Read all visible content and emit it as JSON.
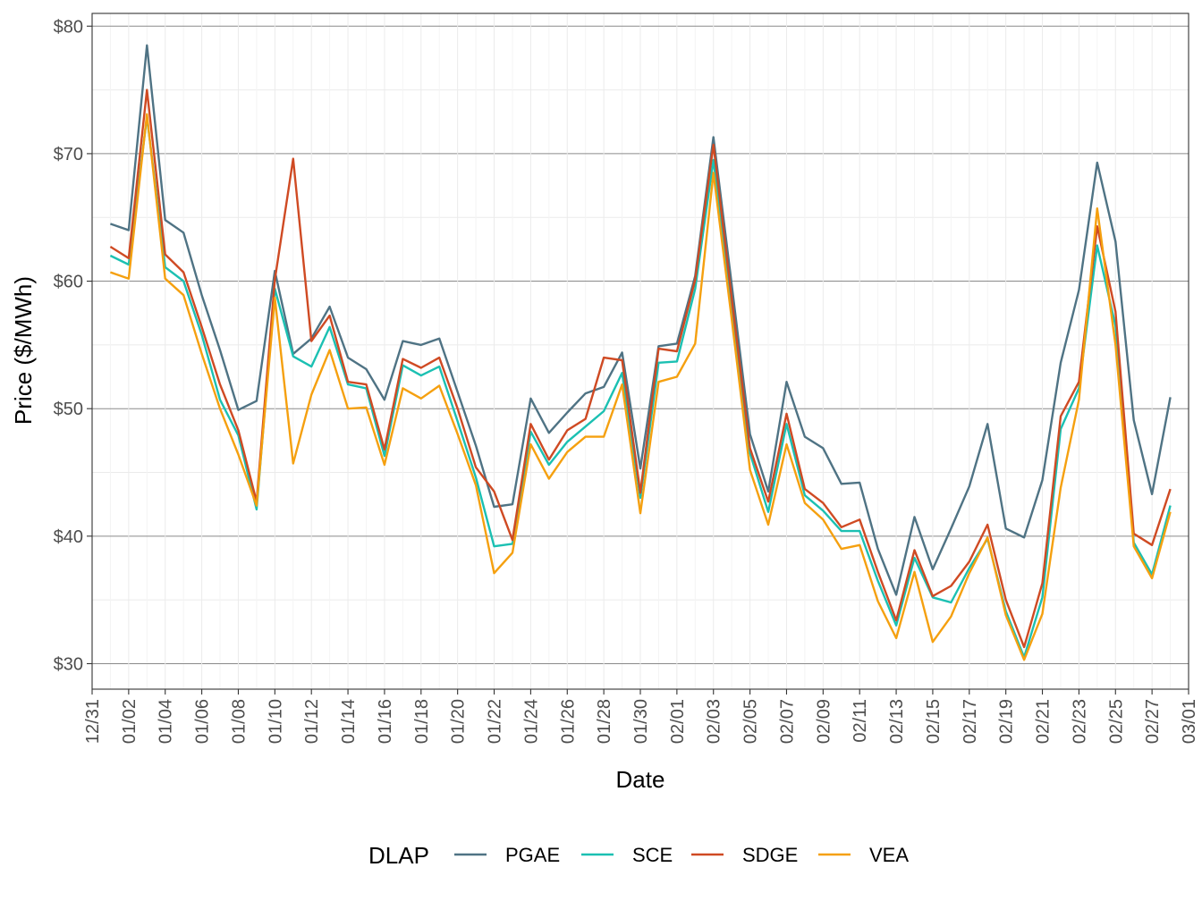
{
  "chart_data": {
    "type": "line",
    "xlabel": "Date",
    "ylabel": "Price ($/MWh)",
    "x_ticks": [
      "12/31",
      "01/02",
      "01/04",
      "01/06",
      "01/08",
      "01/10",
      "01/12",
      "01/14",
      "01/16",
      "01/18",
      "01/20",
      "01/22",
      "01/24",
      "01/26",
      "01/28",
      "01/30",
      "02/01",
      "02/03",
      "02/05",
      "02/07",
      "02/09",
      "02/11",
      "02/13",
      "02/15",
      "02/17",
      "02/19",
      "02/21",
      "02/23",
      "02/25",
      "02/27",
      "03/01"
    ],
    "y_ticks": [
      "$30",
      "$40",
      "$50",
      "$60",
      "$70",
      "$80"
    ],
    "y_tick_values": [
      30,
      40,
      50,
      60,
      70,
      80
    ],
    "ylim": [
      28.0,
      81.0
    ],
    "grid": true,
    "legend": {
      "title": "DLAP",
      "position": "bottom"
    },
    "x": [
      "01/01",
      "01/02",
      "01/03",
      "01/04",
      "01/05",
      "01/06",
      "01/07",
      "01/08",
      "01/09",
      "01/10",
      "01/11",
      "01/12",
      "01/13",
      "01/14",
      "01/15",
      "01/16",
      "01/17",
      "01/18",
      "01/19",
      "01/20",
      "01/21",
      "01/22",
      "01/23",
      "01/24",
      "01/25",
      "01/26",
      "01/27",
      "01/28",
      "01/29",
      "01/30",
      "01/31",
      "02/01",
      "02/02",
      "02/03",
      "02/04",
      "02/05",
      "02/06",
      "02/07",
      "02/08",
      "02/09",
      "02/10",
      "02/11",
      "02/12",
      "02/13",
      "02/14",
      "02/15",
      "02/16",
      "02/17",
      "02/18",
      "02/19",
      "02/20",
      "02/21",
      "02/22",
      "02/23",
      "02/24",
      "02/25",
      "02/26",
      "02/27",
      "02/28"
    ],
    "series": [
      {
        "name": "PGAE",
        "color": "#4F7384",
        "values": [
          64.5,
          64.0,
          78.5,
          64.8,
          63.8,
          58.9,
          54.6,
          49.9,
          50.6,
          60.8,
          54.3,
          55.5,
          58.0,
          54.0,
          53.1,
          50.7,
          55.3,
          55.0,
          55.5,
          51.3,
          47.1,
          42.3,
          42.5,
          50.8,
          48.1,
          49.7,
          51.2,
          51.7,
          54.4,
          45.3,
          54.9,
          55.1,
          60.4,
          71.3,
          59.7,
          48.0,
          43.5,
          52.1,
          47.8,
          46.9,
          44.1,
          44.2,
          39.0,
          35.4,
          41.5,
          37.4,
          40.6,
          43.9,
          48.8,
          40.6,
          39.9,
          44.4,
          53.6,
          59.3,
          69.3,
          63.1,
          49.1,
          43.3,
          50.9
        ]
      },
      {
        "name": "SCE",
        "color": "#1BC0B2",
        "values": [
          62.0,
          61.3,
          72.9,
          61.1,
          60.0,
          55.8,
          50.7,
          47.9,
          42.1,
          59.4,
          54.1,
          53.3,
          56.4,
          51.9,
          51.6,
          46.3,
          53.4,
          52.6,
          53.3,
          49.0,
          44.6,
          39.2,
          39.4,
          48.2,
          45.6,
          47.4,
          48.6,
          49.8,
          52.8,
          43.0,
          53.6,
          53.7,
          59.4,
          69.5,
          57.8,
          46.5,
          41.9,
          48.8,
          43.2,
          42.0,
          40.4,
          40.4,
          36.5,
          33.0,
          38.3,
          35.2,
          34.8,
          37.5,
          39.8,
          34.1,
          30.5,
          35.2,
          48.4,
          51.6,
          62.8,
          56.5,
          39.5,
          37.0,
          42.4
        ]
      },
      {
        "name": "SDGE",
        "color": "#CF4A23",
        "values": [
          62.7,
          61.8,
          75.0,
          62.1,
          60.7,
          56.4,
          51.9,
          48.3,
          42.7,
          60.1,
          69.6,
          55.3,
          57.3,
          52.1,
          51.9,
          46.8,
          53.9,
          53.2,
          54.0,
          50.0,
          45.4,
          43.5,
          39.7,
          48.8,
          46.0,
          48.3,
          49.2,
          54.0,
          53.8,
          43.4,
          54.7,
          54.5,
          60.1,
          70.7,
          58.6,
          46.9,
          42.7,
          49.6,
          43.7,
          42.6,
          40.7,
          41.3,
          37.2,
          33.4,
          38.9,
          35.3,
          36.1,
          38.0,
          40.9,
          35.0,
          31.3,
          36.3,
          49.4,
          52.1,
          64.3,
          57.6,
          40.2,
          39.3,
          43.7
        ]
      },
      {
        "name": "VEA",
        "color": "#F5A00F",
        "values": [
          60.7,
          60.2,
          73.1,
          60.2,
          58.9,
          54.3,
          50.0,
          46.4,
          42.4,
          58.7,
          45.7,
          51.1,
          54.6,
          50.0,
          50.1,
          45.6,
          51.6,
          50.8,
          51.8,
          48.0,
          44.0,
          37.1,
          38.7,
          47.2,
          44.5,
          46.6,
          47.8,
          47.8,
          51.9,
          41.8,
          52.1,
          52.5,
          55.1,
          68.5,
          57.0,
          45.2,
          40.9,
          47.2,
          42.6,
          41.3,
          39.0,
          39.3,
          34.9,
          32.0,
          37.2,
          31.7,
          33.7,
          37.1,
          39.9,
          33.8,
          30.3,
          33.9,
          43.8,
          50.7,
          65.7,
          55.0,
          39.2,
          36.7,
          41.9
        ]
      }
    ]
  }
}
